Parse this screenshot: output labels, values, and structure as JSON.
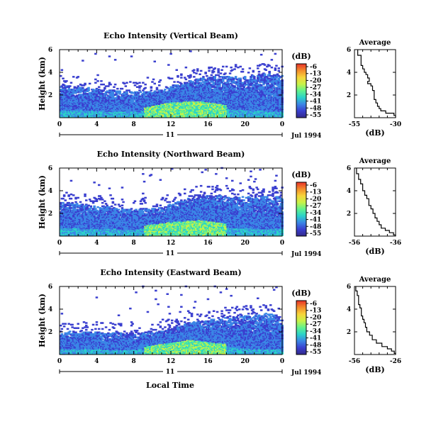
{
  "figure": {
    "x_axis_label": "Local Time",
    "date_label": "Jul 1994",
    "day_label": "11"
  },
  "colorbar": {
    "unit_label": "(dB)",
    "ticks": [
      "-6",
      "-13",
      "-20",
      "-27",
      "-34",
      "-41",
      "-48",
      "-55"
    ],
    "colors": [
      "#e8322a",
      "#f38c2b",
      "#f7d43a",
      "#c9f247",
      "#61f28d",
      "#2bd2c9",
      "#3b86e6",
      "#3a3fcf",
      "#332a8a"
    ]
  },
  "chart_data": [
    {
      "type": "heatmap",
      "title": "Echo Intensity (Vertical Beam)",
      "ylabel": "Height (km)",
      "x_ticks": [
        "0",
        "4",
        "8",
        "12",
        "16",
        "20",
        "0"
      ],
      "y_ticks": [
        "6",
        "4",
        "2"
      ],
      "xlim": [
        0,
        24
      ],
      "ylim": [
        0,
        6
      ],
      "echo_top_km": [
        [
          0,
          2.8
        ],
        [
          4,
          2.5
        ],
        [
          8,
          2.2
        ],
        [
          11,
          2.4
        ],
        [
          13,
          3.0
        ],
        [
          15,
          3.4
        ],
        [
          17,
          3.6
        ],
        [
          20,
          3.6
        ],
        [
          22,
          3.8
        ],
        [
          24,
          3.7
        ]
      ],
      "core_top_km": [
        [
          0,
          1.5
        ],
        [
          4,
          1.4
        ],
        [
          8,
          1.2
        ],
        [
          12,
          2.2
        ],
        [
          15,
          2.4
        ],
        [
          18,
          1.8
        ],
        [
          21,
          1.4
        ],
        [
          24,
          1.3
        ]
      ],
      "profile": {
        "title": "Average",
        "xlabel": "(dB)",
        "x_ticks": [
          "-55",
          "-30"
        ],
        "xlim": [
          -55,
          -30
        ],
        "y_ticks": [
          "6",
          "4",
          "2"
        ],
        "ylim": [
          0,
          6
        ],
        "points": [
          [
            -53,
            6.0
          ],
          [
            -53,
            5.5
          ],
          [
            -51,
            5.0
          ],
          [
            -51,
            4.6
          ],
          [
            -50,
            4.3
          ],
          [
            -49,
            4.0
          ],
          [
            -48,
            3.8
          ],
          [
            -47,
            3.5
          ],
          [
            -46,
            3.2
          ],
          [
            -47,
            3.0
          ],
          [
            -45,
            2.8
          ],
          [
            -44,
            2.4
          ],
          [
            -43,
            2.0
          ],
          [
            -43,
            1.6
          ],
          [
            -42,
            1.3
          ],
          [
            -41,
            1.0
          ],
          [
            -40,
            0.8
          ],
          [
            -39,
            0.6
          ],
          [
            -36,
            0.4
          ],
          [
            -31,
            0.2
          ],
          [
            -30,
            0.0
          ]
        ]
      }
    },
    {
      "type": "heatmap",
      "title": "Echo Intensity (Northward Beam)",
      "ylabel": "Height (km)",
      "x_ticks": [
        "0",
        "4",
        "8",
        "12",
        "16",
        "20",
        "0"
      ],
      "y_ticks": [
        "6",
        "4",
        "2"
      ],
      "xlim": [
        0,
        24
      ],
      "ylim": [
        0,
        6
      ],
      "echo_top_km": [
        [
          0,
          3.0
        ],
        [
          4,
          2.6
        ],
        [
          8,
          2.3
        ],
        [
          11,
          2.5
        ],
        [
          13,
          3.1
        ],
        [
          15,
          3.5
        ],
        [
          17,
          3.5
        ],
        [
          20,
          3.4
        ],
        [
          22,
          3.5
        ],
        [
          24,
          3.4
        ]
      ],
      "core_top_km": [
        [
          0,
          1.6
        ],
        [
          4,
          1.5
        ],
        [
          8,
          1.3
        ],
        [
          12,
          2.0
        ],
        [
          15,
          2.3
        ],
        [
          18,
          1.8
        ],
        [
          21,
          1.5
        ],
        [
          24,
          1.4
        ]
      ],
      "profile": {
        "title": "Average",
        "xlabel": "(dB)",
        "x_ticks": [
          "-56",
          "-36"
        ],
        "xlim": [
          -56,
          -36
        ],
        "y_ticks": [
          "6",
          "4",
          "2"
        ],
        "ylim": [
          0,
          6
        ],
        "points": [
          [
            -55,
            6.0
          ],
          [
            -55,
            5.5
          ],
          [
            -54,
            5.0
          ],
          [
            -53,
            4.6
          ],
          [
            -52,
            4.3
          ],
          [
            -52,
            4.0
          ],
          [
            -51,
            3.6
          ],
          [
            -50,
            3.3
          ],
          [
            -49,
            3.0
          ],
          [
            -49,
            2.7
          ],
          [
            -48,
            2.4
          ],
          [
            -47,
            2.0
          ],
          [
            -46,
            1.6
          ],
          [
            -45,
            1.3
          ],
          [
            -44,
            1.0
          ],
          [
            -43,
            0.7
          ],
          [
            -41,
            0.5
          ],
          [
            -39,
            0.3
          ],
          [
            -37,
            0.1
          ],
          [
            -36,
            0.0
          ]
        ]
      }
    },
    {
      "type": "heatmap",
      "title": "Echo Intensity (Eastward Beam)",
      "ylabel": "Height (km)",
      "x_ticks": [
        "0",
        "4",
        "8",
        "12",
        "16",
        "20",
        "0"
      ],
      "y_ticks": [
        "6",
        "4",
        "2"
      ],
      "xlim": [
        0,
        24
      ],
      "ylim": [
        0,
        6
      ],
      "echo_top_km": [
        [
          0,
          2.0
        ],
        [
          4,
          1.9
        ],
        [
          8,
          1.8
        ],
        [
          11,
          2.0
        ],
        [
          13,
          2.6
        ],
        [
          15,
          2.9
        ],
        [
          17,
          3.1
        ],
        [
          19,
          3.3
        ],
        [
          21,
          3.4
        ],
        [
          22.5,
          3.6
        ],
        [
          24,
          3.0
        ]
      ],
      "core_top_km": [
        [
          0,
          1.1
        ],
        [
          4,
          1.0
        ],
        [
          8,
          0.9
        ],
        [
          11,
          1.5
        ],
        [
          14,
          2.1
        ],
        [
          17,
          1.6
        ],
        [
          21,
          1.1
        ],
        [
          24,
          1.0
        ]
      ],
      "profile": {
        "title": "Average",
        "xlabel": "(dB)",
        "x_ticks": [
          "-56",
          "-26"
        ],
        "xlim": [
          -56,
          -26
        ],
        "y_ticks": [
          "6",
          "4",
          "2"
        ],
        "ylim": [
          0,
          6
        ],
        "points": [
          [
            -55,
            6.0
          ],
          [
            -55,
            5.6
          ],
          [
            -54,
            5.2
          ],
          [
            -53,
            4.8
          ],
          [
            -53,
            4.4
          ],
          [
            -52,
            4.1
          ],
          [
            -51,
            3.8
          ],
          [
            -51,
            3.4
          ],
          [
            -50,
            3.1
          ],
          [
            -49,
            2.8
          ],
          [
            -48,
            2.4
          ],
          [
            -47,
            2.0
          ],
          [
            -45,
            1.7
          ],
          [
            -43,
            1.3
          ],
          [
            -40,
            1.0
          ],
          [
            -36,
            0.7
          ],
          [
            -32,
            0.5
          ],
          [
            -29,
            0.3
          ],
          [
            -27,
            0.1
          ],
          [
            -26,
            0.0
          ]
        ]
      }
    }
  ]
}
